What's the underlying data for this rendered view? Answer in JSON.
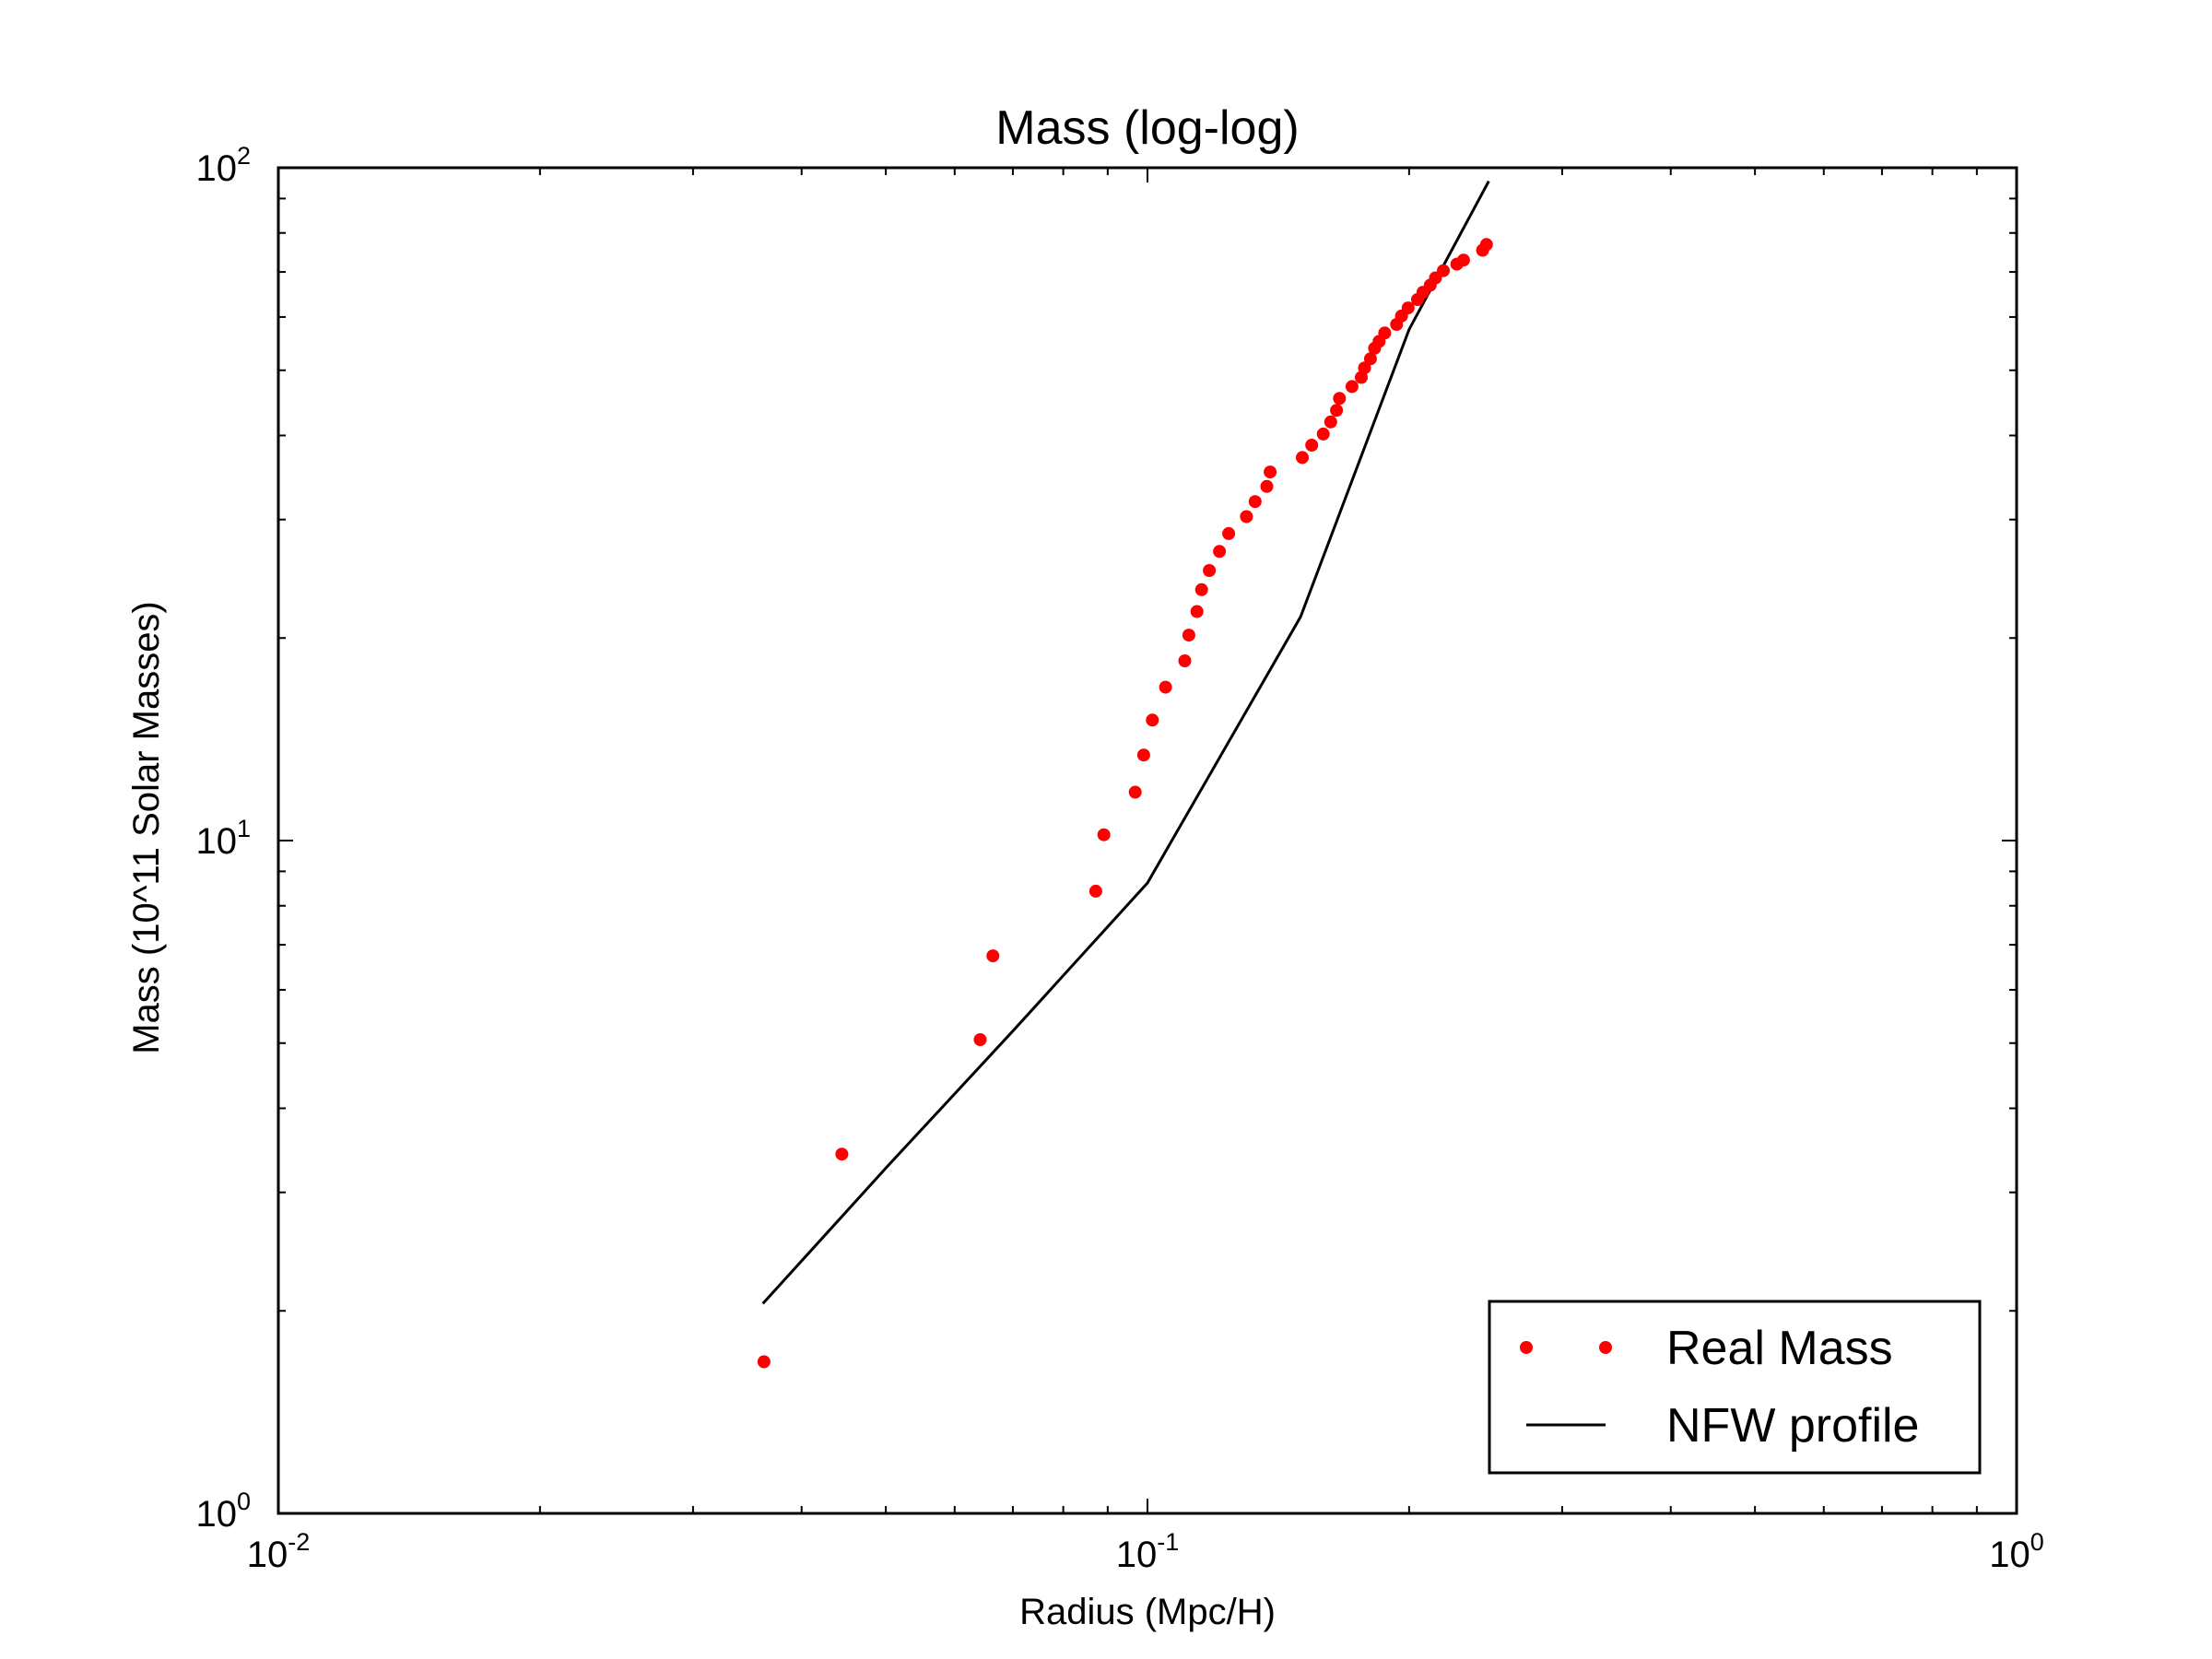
{
  "chart_data": {
    "type": "scatter",
    "title": "Mass (log-log)",
    "xlabel": "Radius (Mpc/H)",
    "ylabel": "Mass (10^11 Solar Masses)",
    "xscale": "log",
    "yscale": "log",
    "xlim": [
      0.01,
      1
    ],
    "ylim": [
      1,
      100
    ],
    "grid": false,
    "legend_position": "bottom-right",
    "x_ticks": [
      {
        "base": "10",
        "exp": "-2",
        "value": 0.01
      },
      {
        "base": "10",
        "exp": "-1",
        "value": 0.1
      },
      {
        "base": "10",
        "exp": "0",
        "value": 1
      }
    ],
    "y_ticks": [
      {
        "base": "10",
        "exp": "0",
        "value": 1
      },
      {
        "base": "10",
        "exp": "1",
        "value": 10
      },
      {
        "base": "10",
        "exp": "2",
        "value": 100
      }
    ],
    "series": [
      {
        "name": "Real Mass",
        "kind": "points",
        "color": "#ff0000",
        "points": [
          [
            0.0362,
            1.68
          ],
          [
            0.0445,
            3.42
          ],
          [
            0.0642,
            5.06
          ],
          [
            0.0664,
            6.74
          ],
          [
            0.0872,
            8.41
          ],
          [
            0.0891,
            10.2
          ],
          [
            0.0968,
            11.8
          ],
          [
            0.099,
            13.4
          ],
          [
            0.1013,
            15.1
          ],
          [
            0.1049,
            16.9
          ],
          [
            0.1104,
            18.5
          ],
          [
            0.1116,
            20.2
          ],
          [
            0.114,
            21.9
          ],
          [
            0.1154,
            23.6
          ],
          [
            0.1178,
            25.2
          ],
          [
            0.121,
            26.9
          ],
          [
            0.124,
            28.6
          ],
          [
            0.13,
            30.3
          ],
          [
            0.133,
            31.9
          ],
          [
            0.1372,
            33.6
          ],
          [
            0.1384,
            35.3
          ],
          [
            0.1507,
            37.1
          ],
          [
            0.1545,
            38.7
          ],
          [
            0.1593,
            40.2
          ],
          [
            0.1625,
            41.9
          ],
          [
            0.165,
            43.6
          ],
          [
            0.1663,
            45.4
          ],
          [
            0.1719,
            47.3
          ],
          [
            0.1762,
            48.8
          ],
          [
            0.1777,
            50.4
          ],
          [
            0.1805,
            52.0
          ],
          [
            0.1825,
            53.9
          ],
          [
            0.1847,
            55.2
          ],
          [
            0.1875,
            56.8
          ],
          [
            0.1935,
            58.5
          ],
          [
            0.196,
            60.2
          ],
          [
            0.1995,
            61.9
          ],
          [
            0.2045,
            63.7
          ],
          [
            0.2075,
            65.3
          ],
          [
            0.2115,
            66.9
          ],
          [
            0.2145,
            68.6
          ],
          [
            0.219,
            70.3
          ],
          [
            0.227,
            71.9
          ],
          [
            0.231,
            72.9
          ],
          [
            0.243,
            75.4
          ],
          [
            0.2455,
            76.9
          ]
        ]
      },
      {
        "name": "NFW profile",
        "kind": "line",
        "color": "#000000",
        "x": [
          0.0361,
          0.05,
          0.07,
          0.1,
          0.15,
          0.2,
          0.247
        ],
        "y": [
          2.05,
          3.26,
          5.21,
          8.65,
          21.5,
          57.5,
          95.5
        ]
      }
    ]
  }
}
